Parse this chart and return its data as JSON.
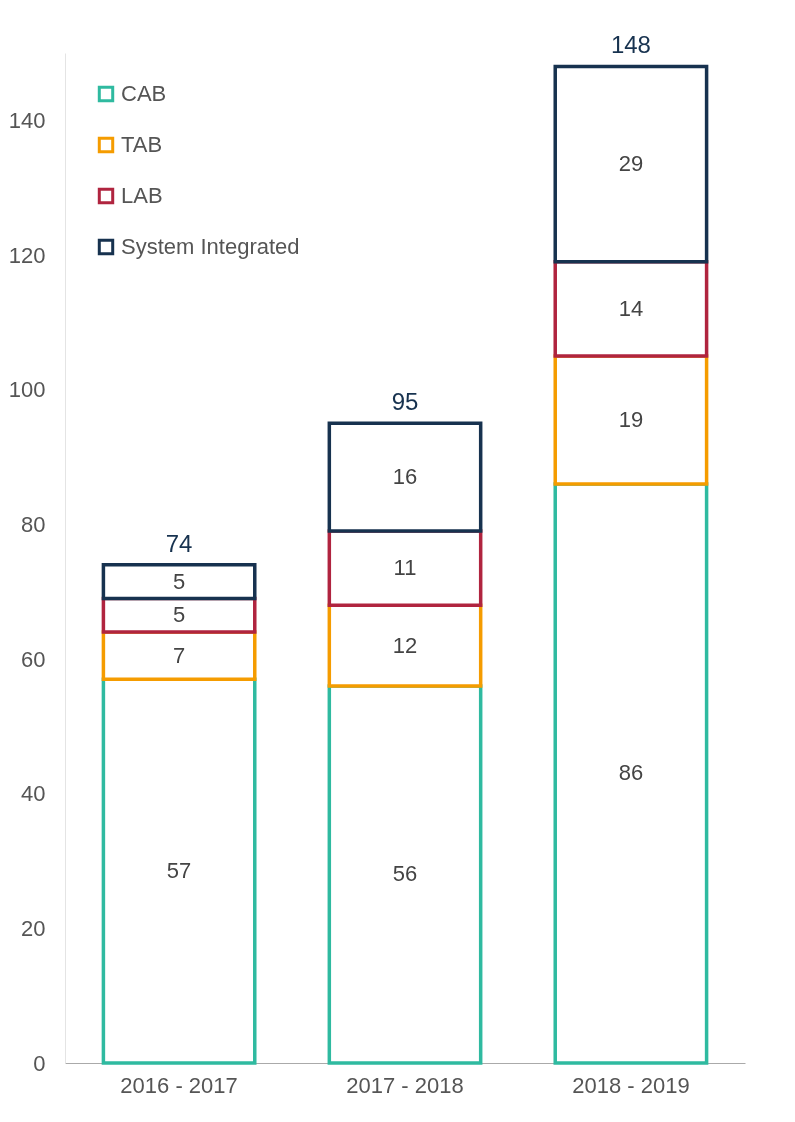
{
  "chart_data": {
    "type": "bar",
    "stacked": true,
    "categories": [
      "2016 - 2017",
      "2017 - 2018",
      "2018 - 2019"
    ],
    "series": [
      {
        "name": "CAB",
        "color": "#2fbaa0",
        "values": [
          57,
          56,
          86
        ]
      },
      {
        "name": "TAB",
        "color": "#f59c00",
        "values": [
          7,
          12,
          19
        ]
      },
      {
        "name": "LAB",
        "color": "#b0243f",
        "values": [
          5,
          11,
          14
        ]
      },
      {
        "name": "System Integrated",
        "color": "#17324f",
        "values": [
          5,
          16,
          29
        ]
      }
    ],
    "totals": [
      "74",
      "95",
      "148"
    ],
    "ylim": [
      0,
      150
    ],
    "yticks": [
      0,
      20,
      40,
      60,
      80,
      100,
      120,
      140
    ],
    "data_labels": true,
    "grid": false,
    "legend": "top left"
  }
}
